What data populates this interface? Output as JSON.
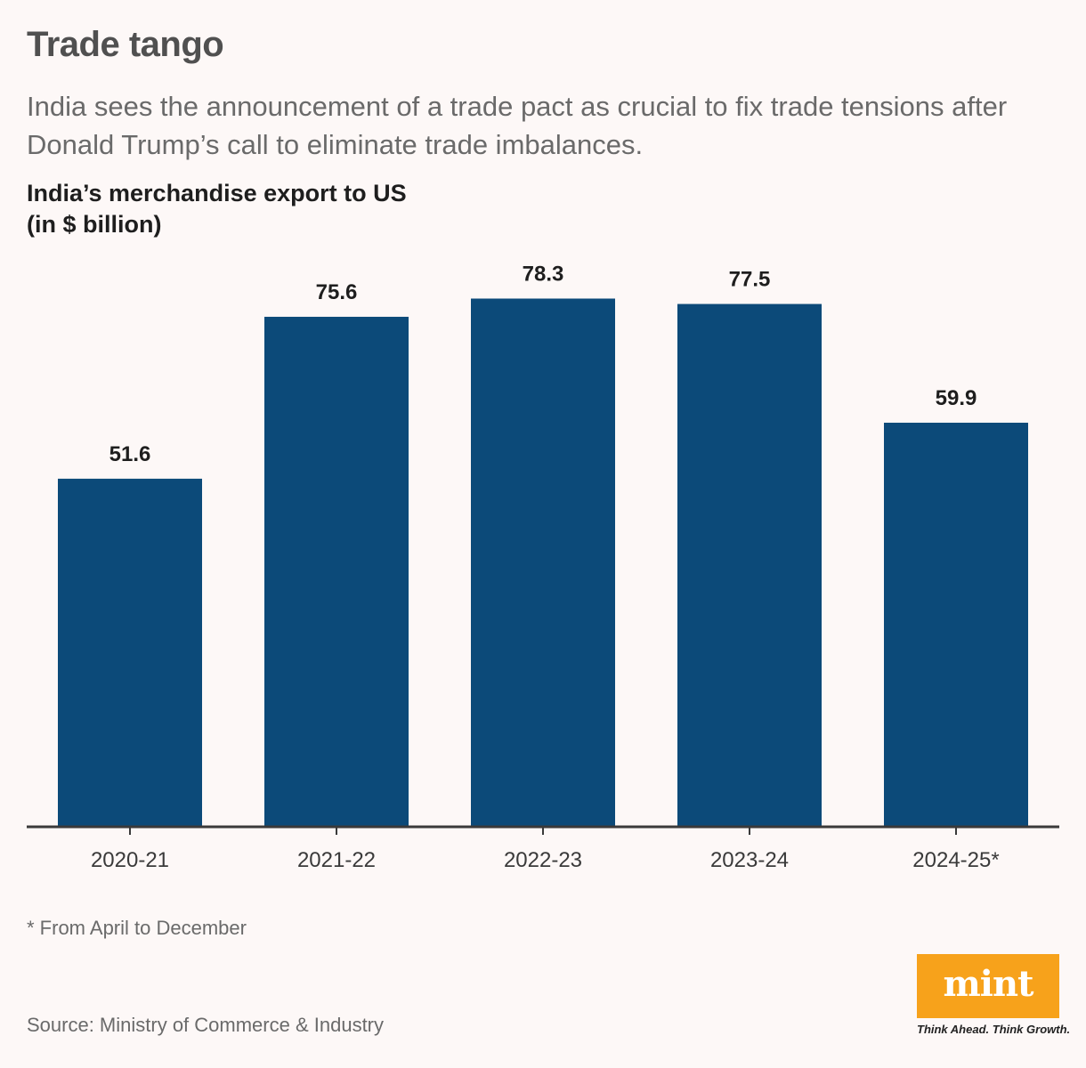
{
  "header": {
    "title": "Trade tango",
    "subtitle": "India sees the announcement of a trade pact as crucial to fix trade tensions after Donald Trump’s call to eliminate trade imbalances."
  },
  "chart_heading": {
    "line1": "India’s merchandise export to US",
    "line2": "(in $ billion)"
  },
  "chart_data": {
    "type": "bar",
    "title": "India’s merchandise export to US (in $ billion)",
    "categories": [
      "2020-21",
      "2021-22",
      "2022-23",
      "2023-24",
      "2024-25*"
    ],
    "values": [
      51.6,
      75.6,
      78.3,
      77.5,
      59.9
    ],
    "xlabel": "",
    "ylabel": "",
    "ylim": [
      0,
      80
    ],
    "grid": false,
    "bar_color": "#0c4a79",
    "data_labels": true
  },
  "footnote": "* From April to December",
  "source": "Source: Ministry of Commerce & Industry",
  "brand": {
    "logo_text": "mint",
    "tagline": "Think Ahead. Think Growth.",
    "color": "#f7a21b"
  }
}
